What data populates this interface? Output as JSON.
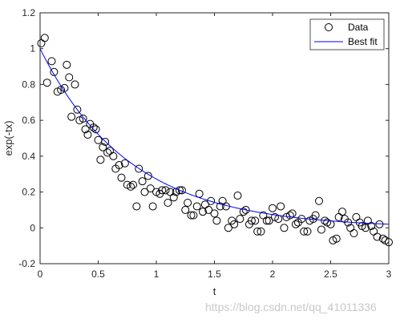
{
  "chart_data": {
    "type": "scatter",
    "xlabel": "t",
    "ylabel": "exp(-tx)",
    "xlim": [
      0,
      3
    ],
    "ylim": [
      -0.2,
      1.2
    ],
    "xticks": [
      0,
      0.5,
      1,
      1.5,
      2,
      2.5,
      3
    ],
    "xtick_labels": [
      "0",
      "0.5",
      "1",
      "1.5",
      "2",
      "2.5",
      "3"
    ],
    "yticks": [
      -0.2,
      0,
      0.2,
      0.4,
      0.6,
      0.8,
      1,
      1.2
    ],
    "ytick_labels": [
      "-0.2",
      "0",
      "0.2",
      "0.4",
      "0.6",
      "0.8",
      "1",
      "1.2"
    ],
    "grid": false,
    "legend_position": "top-right",
    "series": [
      {
        "name": "Data",
        "style": "open-circle-markers",
        "color": "#000000",
        "x": [
          0.01,
          0.04,
          0.06,
          0.1,
          0.12,
          0.15,
          0.18,
          0.21,
          0.23,
          0.25,
          0.27,
          0.3,
          0.32,
          0.34,
          0.37,
          0.39,
          0.41,
          0.43,
          0.46,
          0.48,
          0.5,
          0.52,
          0.54,
          0.56,
          0.58,
          0.6,
          0.63,
          0.65,
          0.68,
          0.7,
          0.73,
          0.75,
          0.78,
          0.8,
          0.83,
          0.85,
          0.88,
          0.9,
          0.93,
          0.95,
          0.97,
          1.0,
          1.03,
          1.05,
          1.08,
          1.1,
          1.12,
          1.15,
          1.17,
          1.2,
          1.22,
          1.25,
          1.27,
          1.3,
          1.32,
          1.35,
          1.37,
          1.4,
          1.42,
          1.45,
          1.47,
          1.5,
          1.52,
          1.55,
          1.57,
          1.6,
          1.62,
          1.65,
          1.67,
          1.7,
          1.72,
          1.75,
          1.77,
          1.8,
          1.82,
          1.85,
          1.87,
          1.9,
          1.92,
          1.95,
          1.97,
          2.0,
          2.02,
          2.05,
          2.07,
          2.1,
          2.12,
          2.15,
          2.17,
          2.2,
          2.22,
          2.25,
          2.27,
          2.3,
          2.32,
          2.35,
          2.37,
          2.4,
          2.42,
          2.45,
          2.47,
          2.5,
          2.52,
          2.55,
          2.57,
          2.6,
          2.62,
          2.65,
          2.67,
          2.7,
          2.72,
          2.75,
          2.77,
          2.8,
          2.82,
          2.85,
          2.87,
          2.9,
          2.92,
          2.95,
          2.97,
          3.0
        ],
        "y": [
          1.03,
          1.06,
          0.81,
          0.93,
          0.87,
          0.76,
          0.77,
          0.78,
          0.91,
          0.84,
          0.62,
          0.8,
          0.66,
          0.6,
          0.61,
          0.55,
          0.52,
          0.58,
          0.56,
          0.55,
          0.49,
          0.38,
          0.45,
          0.48,
          0.42,
          0.43,
          0.4,
          0.33,
          0.35,
          0.28,
          0.36,
          0.24,
          0.23,
          0.24,
          0.12,
          0.33,
          0.26,
          0.2,
          0.29,
          0.22,
          0.12,
          0.2,
          0.19,
          0.21,
          0.21,
          0.14,
          0.2,
          0.17,
          0.2,
          0.21,
          0.21,
          0.1,
          0.14,
          0.07,
          0.07,
          0.12,
          0.19,
          0.09,
          0.13,
          0.1,
          0.15,
          0.08,
          0.04,
          0.12,
          0.15,
          0.12,
          0.0,
          0.04,
          0.02,
          0.18,
          0.05,
          0.09,
          0.1,
          0.02,
          0.04,
          0.04,
          -0.02,
          -0.02,
          0.07,
          0.04,
          0.04,
          0.11,
          0.06,
          0.05,
          0.12,
          0.0,
          0.06,
          0.07,
          0.08,
          0.02,
          0.03,
          0.05,
          -0.02,
          -0.02,
          0.04,
          0.05,
          0.07,
          0.15,
          -0.01,
          0.04,
          0.03,
          0.02,
          -0.07,
          -0.06,
          0.06,
          0.09,
          0.05,
          0.03,
          0.0,
          -0.03,
          0.06,
          0.03,
          0.01,
          0.0,
          0.04,
          0.01,
          -0.02,
          -0.05,
          0.02,
          -0.06,
          -0.07,
          -0.08
        ]
      },
      {
        "name": "Best fit",
        "style": "line",
        "color": "#0000ff",
        "function": "exp(-1.3*t)",
        "rate": 1.3
      }
    ]
  },
  "watermark_text": "https://blog.csdn.net/qq_41011336"
}
